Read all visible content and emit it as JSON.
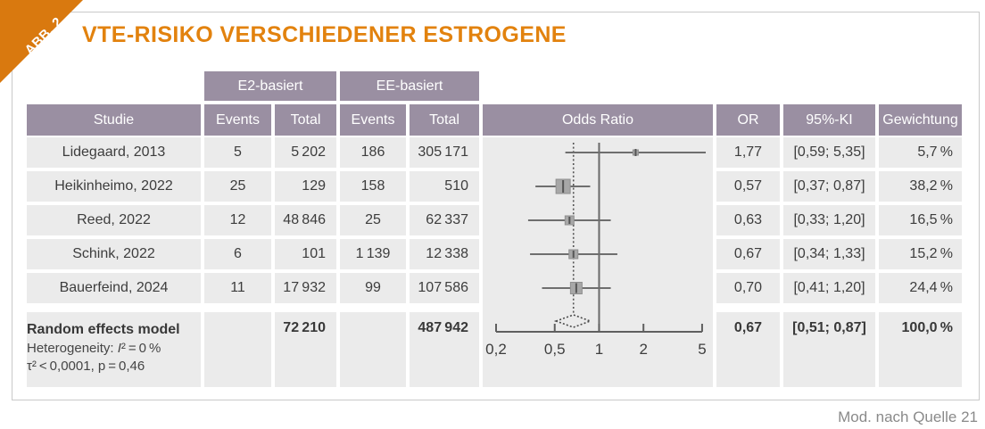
{
  "ribbon": {
    "label": "ABB. 2"
  },
  "title": "VTE-RISIKO VERSCHIEDENER ESTROGENE",
  "source_note": "Mod. nach Quelle 21",
  "colors": {
    "accent_orange": "#d9790f",
    "title_orange": "#e2820e",
    "header_purple": "#9a8fa2",
    "cell_gray": "#ebebeb",
    "text_dark": "#3d3d3d",
    "source_gray": "#8a8a8a",
    "plot_line_gray": "#636363",
    "marker_gray": "#a7a7a7"
  },
  "table": {
    "group_headers": [
      {
        "label": "E2-basiert"
      },
      {
        "label": "EE-basiert"
      }
    ],
    "columns": [
      "Studie",
      "Events",
      "Total",
      "Events",
      "Total",
      "Odds Ratio",
      "OR",
      "95%-KI",
      "Gewichtung"
    ],
    "rows": [
      {
        "study": "Lidegaard, 2013",
        "e2_events": "5",
        "e2_total": "5 202",
        "ee_events": "186",
        "ee_total": "305 171",
        "or": "1,77",
        "ci": "[0,59; 5,35]",
        "weight": "5,7 %"
      },
      {
        "study": "Heikinheimo, 2022",
        "e2_events": "25",
        "e2_total": "129",
        "ee_events": "158",
        "ee_total": "510",
        "or": "0,57",
        "ci": "[0,37; 0,87]",
        "weight": "38,2 %"
      },
      {
        "study": "Reed, 2022",
        "e2_events": "12",
        "e2_total": "48 846",
        "ee_events": "25",
        "ee_total": "62 337",
        "or": "0,63",
        "ci": "[0,33; 1,20]",
        "weight": "16,5 %"
      },
      {
        "study": "Schink, 2022",
        "e2_events": "6",
        "e2_total": "101",
        "ee_events": "1 139",
        "ee_total": "12 338",
        "or": "0,67",
        "ci": "[0,34; 1,33]",
        "weight": "15,2 %"
      },
      {
        "study": "Bauerfeind, 2024",
        "e2_events": "11",
        "e2_total": "17 932",
        "ee_events": "99",
        "ee_total": "107 586",
        "or": "0,70",
        "ci": "[0,41; 1,20]",
        "weight": "24,4 %"
      }
    ],
    "summary": {
      "label": "Random effects model",
      "het_prefix": "Heterogeneity: ",
      "het_var": "I",
      "het_suffix": "² = 0 %",
      "het_line2": "τ² < 0,0001, p = 0,46",
      "e2_total": "72 210",
      "ee_total": "487 942",
      "or": "0,67",
      "ci": "[0,51; 0,87]",
      "weight": "100,0 %"
    }
  },
  "chart_data": {
    "type": "forest",
    "x_scale": "log",
    "x_ticks": [
      "0,2",
      "0,5",
      "1",
      "2",
      "5"
    ],
    "x_tick_values": [
      0.2,
      0.5,
      1,
      2,
      5
    ],
    "x_range": [
      0.2,
      5
    ],
    "null_line": 1.0,
    "pooled_reference_line": 0.67,
    "studies": [
      {
        "name": "Lidegaard, 2013",
        "or": 1.77,
        "ci_low": 0.59,
        "ci_high": 5.35,
        "weight_pct": 5.7
      },
      {
        "name": "Heikinheimo, 2022",
        "or": 0.57,
        "ci_low": 0.37,
        "ci_high": 0.87,
        "weight_pct": 38.2
      },
      {
        "name": "Reed, 2022",
        "or": 0.63,
        "ci_low": 0.33,
        "ci_high": 1.2,
        "weight_pct": 16.5
      },
      {
        "name": "Schink, 2022",
        "or": 0.67,
        "ci_low": 0.34,
        "ci_high": 1.33,
        "weight_pct": 15.2
      },
      {
        "name": "Bauerfeind, 2024",
        "or": 0.7,
        "ci_low": 0.41,
        "ci_high": 1.2,
        "weight_pct": 24.4
      }
    ],
    "pooled": {
      "name": "Random effects model",
      "or": 0.67,
      "ci_low": 0.51,
      "ci_high": 0.87,
      "weight_pct": 100.0
    }
  }
}
